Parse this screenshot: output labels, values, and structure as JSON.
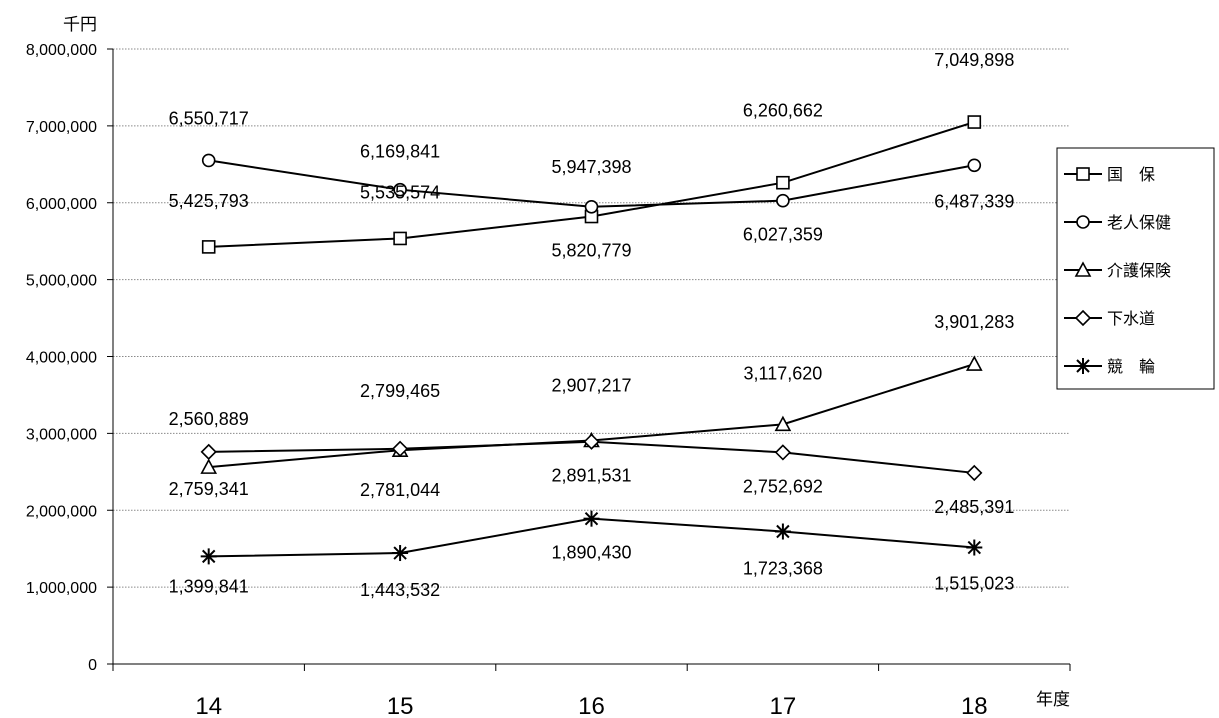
{
  "chart_data": {
    "type": "line",
    "y_unit_label": "千円",
    "x_unit_label": "年度",
    "categories": [
      "14",
      "15",
      "16",
      "17",
      "18"
    ],
    "ylim": [
      0,
      8000000
    ],
    "yticks": [
      "0",
      "1,000,000",
      "2,000,000",
      "3,000,000",
      "4,000,000",
      "5,000,000",
      "6,000,000",
      "7,000,000",
      "8,000,000"
    ],
    "grid": "horizontal dotted",
    "legend_placement": "right",
    "series": [
      {
        "name": "国　保",
        "marker": "square",
        "values": [
          5425793,
          5535574,
          5820779,
          6260662,
          7049898
        ],
        "labels": [
          "5,425,793",
          "5,535,574",
          "5,820,779",
          "6,260,662",
          "7,049,898"
        ]
      },
      {
        "name": "老人保健",
        "marker": "circle",
        "values": [
          6550717,
          6169841,
          5947398,
          6027359,
          6487339
        ],
        "labels": [
          "6,550,717",
          "6,169,841",
          "5,947,398",
          "6,027,359",
          "6,487,339"
        ]
      },
      {
        "name": "介護保険",
        "marker": "triangle",
        "values": [
          2560889,
          2781044,
          2907217,
          3117620,
          3901283
        ],
        "labels": [
          "2,560,889",
          "2,781,044",
          "2,907,217",
          "3,117,620",
          "3,901,283"
        ]
      },
      {
        "name": "下水道",
        "marker": "diamond",
        "values": [
          2759341,
          2799465,
          2891531,
          2752692,
          2485391
        ],
        "labels": [
          "2,759,341",
          "2,799,465",
          "2,891,531",
          "2,752,692",
          "2,485,391"
        ]
      },
      {
        "name": "競　輪",
        "marker": "asterisk",
        "values": [
          1399841,
          1443532,
          1890430,
          1723368,
          1515023
        ],
        "labels": [
          "1,399,841",
          "1,443,532",
          "1,890,430",
          "1,723,368",
          "1,515,023"
        ]
      }
    ]
  }
}
